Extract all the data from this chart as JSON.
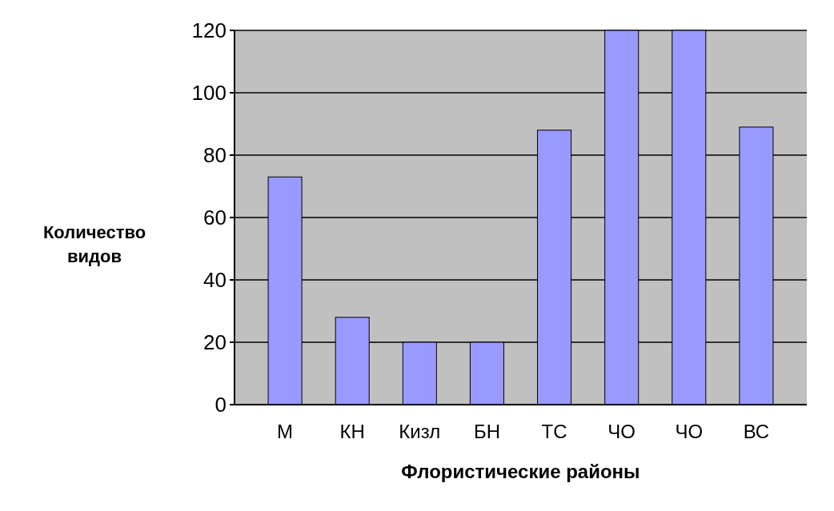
{
  "chart_data": {
    "type": "bar",
    "xlabel": "Флористические районы",
    "ylabel": "Количество видов",
    "categories": [
      "М",
      "КН",
      "Кизл",
      "БН",
      "ТС",
      "ЧО",
      "ЧО",
      "ВС"
    ],
    "values": [
      73,
      28,
      20,
      20,
      88,
      120,
      120,
      89
    ],
    "color": "#9999ff",
    "ylim": [
      0,
      120
    ],
    "yticks": [
      0,
      20,
      40,
      60,
      80,
      100,
      120
    ],
    "grid": "y"
  }
}
